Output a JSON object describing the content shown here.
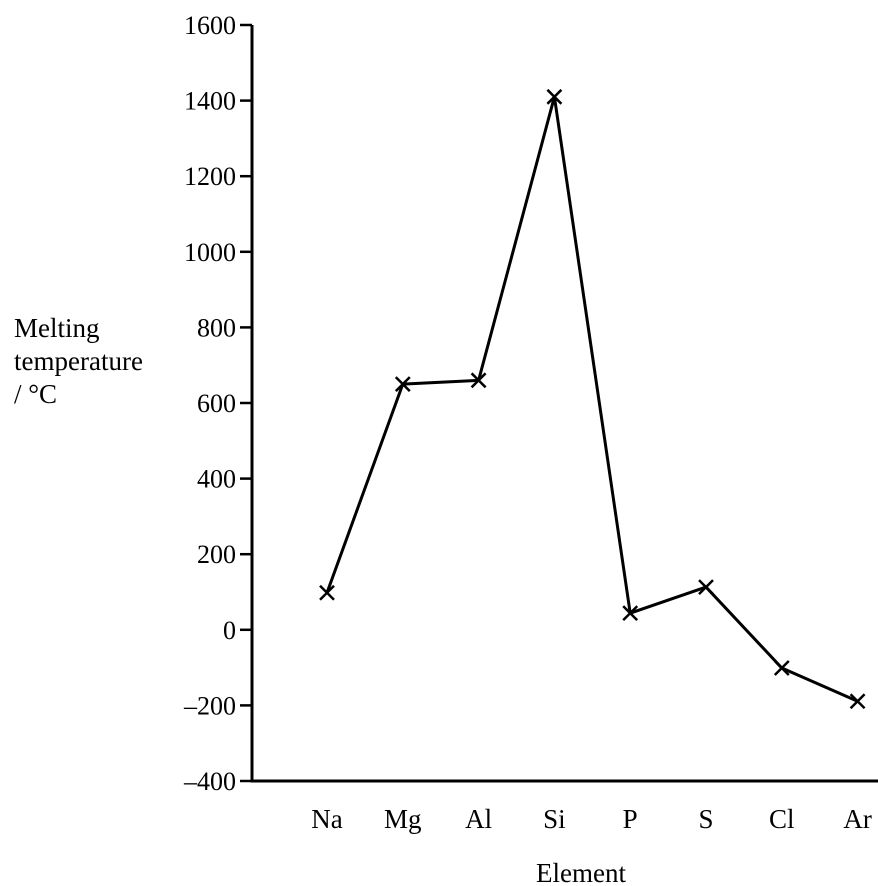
{
  "chart_data": {
    "type": "line",
    "xlabel": "Element",
    "ylabel_lines": [
      "Melting",
      "temperature",
      "/ °C"
    ],
    "categories": [
      "Na",
      "Mg",
      "Al",
      "Si",
      "P",
      "S",
      "Cl",
      "Ar"
    ],
    "series": [
      {
        "values": [
          98,
          650,
          660,
          1410,
          44,
          113,
          -101,
          -189
        ]
      }
    ],
    "ylim": [
      -400,
      1600
    ],
    "yticks": [
      -400,
      -200,
      0,
      200,
      400,
      600,
      800,
      1000,
      1200,
      1400,
      1600
    ],
    "ytick_labels": [
      "–400",
      "–200",
      "0",
      "200",
      "400",
      "600",
      "800",
      "1000",
      "1200",
      "1400",
      "1600"
    ],
    "marker": "cross",
    "grid": false,
    "line_color": "#000000"
  }
}
